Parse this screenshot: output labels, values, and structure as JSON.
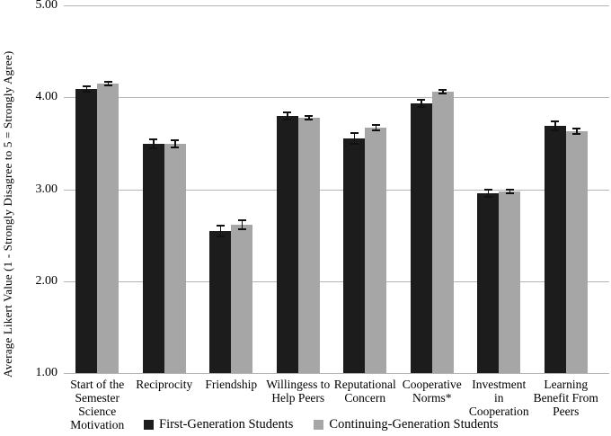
{
  "chart_data": {
    "type": "bar",
    "title": "",
    "xlabel": "",
    "ylabel": "Average Likert Value (1 - Strongly Disagree to 5 = Strongly Agree)",
    "ylim": [
      1,
      5
    ],
    "yticks": [
      "5.00",
      "4.00",
      "3.00",
      "2.00",
      "1.00"
    ],
    "grid": true,
    "legend_position": "bottom",
    "categories": [
      "Start of the\nSemester\nScience\nMotivation",
      "Reciprocity",
      "Friendship",
      "Willingess to\nHelp Peers",
      "Reputational\nConcern",
      "Cooperative\nNorms*",
      "Investment in\nCooperation",
      "Learning\nBenefit From\nPeers"
    ],
    "series": [
      {
        "name": "First-Generation Students",
        "color": "#1c1c1c",
        "values": [
          4.09,
          3.49,
          2.55,
          3.8,
          3.55,
          3.93,
          2.96,
          3.69
        ],
        "errors": [
          0.04,
          0.06,
          0.07,
          0.05,
          0.07,
          0.05,
          0.05,
          0.06
        ]
      },
      {
        "name": "Continuing-Generation Students",
        "color": "#a6a6a6",
        "values": [
          4.15,
          3.49,
          2.61,
          3.78,
          3.67,
          4.06,
          2.98,
          3.63
        ],
        "errors": [
          0.03,
          0.05,
          0.06,
          0.03,
          0.04,
          0.03,
          0.03,
          0.04
        ]
      }
    ],
    "colors": {
      "gridline": "#b4b4b4",
      "error_bar": "#111111",
      "background": "#ffffff"
    }
  }
}
